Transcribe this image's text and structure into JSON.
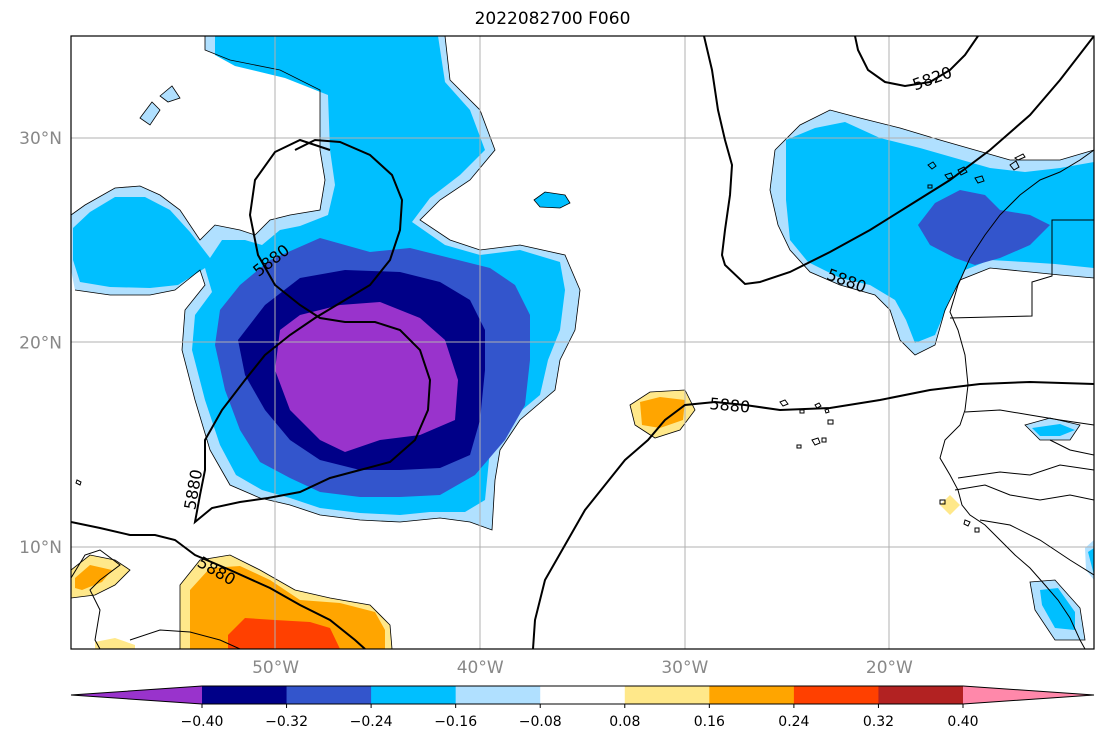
{
  "title": "2022082700 F060",
  "map": {
    "lon_range": [
      -60,
      -10
    ],
    "lat_range": [
      5,
      35
    ],
    "gridlines": true,
    "lat_ticks": [
      {
        "lat": 30,
        "label": "30°N"
      },
      {
        "lat": 20,
        "label": "20°N"
      },
      {
        "lat": 10,
        "label": "10°N"
      }
    ],
    "lon_ticks": [
      {
        "lon": -50,
        "label": "50°W"
      },
      {
        "lon": -40,
        "label": "40°W"
      },
      {
        "lon": -30,
        "label": "30°W"
      },
      {
        "lon": -20,
        "label": "20°W"
      }
    ],
    "contour_labels": [
      {
        "label": "5880",
        "lon": -50.2,
        "lat": 24.0,
        "rot": -38
      },
      {
        "label": "5880",
        "lon": -54.0,
        "lat": 12.8,
        "rot": -80
      },
      {
        "label": "5880",
        "lon": -52.9,
        "lat": 8.8,
        "rot": 30
      },
      {
        "label": "5880",
        "lon": -27.8,
        "lat": 16.9,
        "rot": 5
      },
      {
        "label": "5880",
        "lon": -22.1,
        "lat": 23.0,
        "rot": 20
      },
      {
        "label": "5820",
        "lon": -17.9,
        "lat": 32.9,
        "rot": -20
      }
    ]
  },
  "colorbar": {
    "levels": [
      -0.4,
      -0.32,
      -0.24,
      -0.16,
      -0.08,
      0.08,
      0.16,
      0.24,
      0.32,
      0.4
    ],
    "tick_labels": [
      "−0.40",
      "−0.32",
      "−0.24",
      "−0.16",
      "−0.08",
      "0.08",
      "0.16",
      "0.24",
      "0.32",
      "0.40"
    ],
    "colors": [
      "#9933cc",
      "#000088",
      "#3355cc",
      "#00bfff",
      "#b0e0ff",
      "#ffffff",
      "#ffe88a",
      "#ffa500",
      "#ff4000",
      "#b22222",
      "#ff88aa"
    ],
    "extend": "both"
  },
  "colors": {
    "frame": "#000000",
    "grid": "#b0b0b0",
    "contour": "#000000",
    "coast": "#000000"
  }
}
